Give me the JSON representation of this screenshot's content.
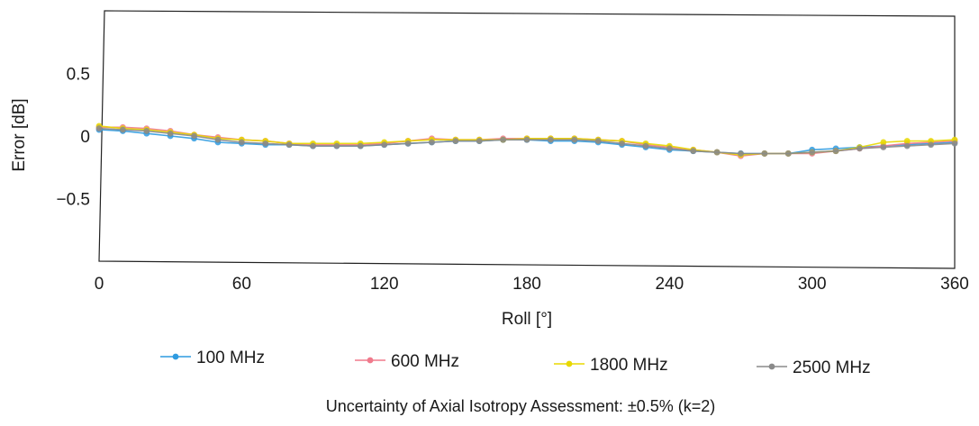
{
  "chart_data": {
    "type": "line",
    "title": "",
    "xlabel": "Roll [°]",
    "ylabel": "Error [dB]",
    "xlim": [
      0,
      360
    ],
    "ylim": [
      -1,
      1
    ],
    "xticks": [
      "0",
      "60",
      "120",
      "180",
      "240",
      "300",
      "360"
    ],
    "yticks": [
      "0.5",
      "0",
      "−0.5"
    ],
    "ytick_values": [
      0.5,
      0,
      -0.5
    ],
    "xtick_values": [
      0,
      60,
      120,
      180,
      240,
      300,
      360
    ],
    "grid": false,
    "legend_position": "bottom",
    "x": [
      0,
      10,
      20,
      30,
      40,
      50,
      60,
      70,
      80,
      90,
      100,
      110,
      120,
      130,
      140,
      150,
      160,
      170,
      180,
      190,
      200,
      210,
      220,
      230,
      240,
      250,
      260,
      270,
      280,
      290,
      300,
      310,
      320,
      330,
      340,
      350,
      360
    ],
    "series": [
      {
        "name": "100 MHz",
        "color": "#2f9be0",
        "values": [
          0.05,
          0.04,
          0.02,
          0.0,
          -0.02,
          -0.05,
          -0.06,
          -0.07,
          -0.07,
          -0.08,
          -0.08,
          -0.08,
          -0.07,
          -0.06,
          -0.05,
          -0.04,
          -0.04,
          -0.03,
          -0.03,
          -0.04,
          -0.04,
          -0.05,
          -0.07,
          -0.09,
          -0.11,
          -0.12,
          -0.13,
          -0.14,
          -0.14,
          -0.14,
          -0.11,
          -0.1,
          -0.09,
          -0.08,
          -0.07,
          -0.06,
          -0.05
        ]
      },
      {
        "name": "600 MHz",
        "color": "#f07a8c",
        "values": [
          0.07,
          0.07,
          0.06,
          0.04,
          0.01,
          -0.01,
          -0.03,
          -0.04,
          -0.06,
          -0.07,
          -0.07,
          -0.07,
          -0.06,
          -0.04,
          -0.02,
          -0.03,
          -0.03,
          -0.02,
          -0.02,
          -0.02,
          -0.02,
          -0.03,
          -0.04,
          -0.07,
          -0.09,
          -0.11,
          -0.13,
          -0.16,
          -0.14,
          -0.14,
          -0.14,
          -0.12,
          -0.1,
          -0.08,
          -0.06,
          -0.05,
          -0.04
        ]
      },
      {
        "name": "1800 MHz",
        "color": "#e8d800",
        "values": [
          0.08,
          0.06,
          0.05,
          0.03,
          0.01,
          -0.02,
          -0.03,
          -0.04,
          -0.06,
          -0.06,
          -0.06,
          -0.06,
          -0.05,
          -0.04,
          -0.03,
          -0.03,
          -0.03,
          -0.03,
          -0.02,
          -0.02,
          -0.02,
          -0.03,
          -0.04,
          -0.06,
          -0.08,
          -0.11,
          -0.13,
          -0.15,
          -0.14,
          -0.14,
          -0.13,
          -0.12,
          -0.09,
          -0.05,
          -0.04,
          -0.04,
          -0.03
        ]
      },
      {
        "name": "2500 MHz",
        "color": "#8a8a8a",
        "values": [
          0.06,
          0.05,
          0.04,
          0.02,
          0.0,
          -0.03,
          -0.05,
          -0.06,
          -0.07,
          -0.08,
          -0.08,
          -0.08,
          -0.07,
          -0.06,
          -0.05,
          -0.04,
          -0.04,
          -0.03,
          -0.03,
          -0.03,
          -0.03,
          -0.04,
          -0.06,
          -0.08,
          -0.1,
          -0.12,
          -0.13,
          -0.14,
          -0.14,
          -0.14,
          -0.13,
          -0.12,
          -0.1,
          -0.09,
          -0.08,
          -0.07,
          -0.06
        ]
      }
    ],
    "footnote": "Uncertainty of Axial Isotropy Assessment: ±0.5% (k=2)"
  }
}
